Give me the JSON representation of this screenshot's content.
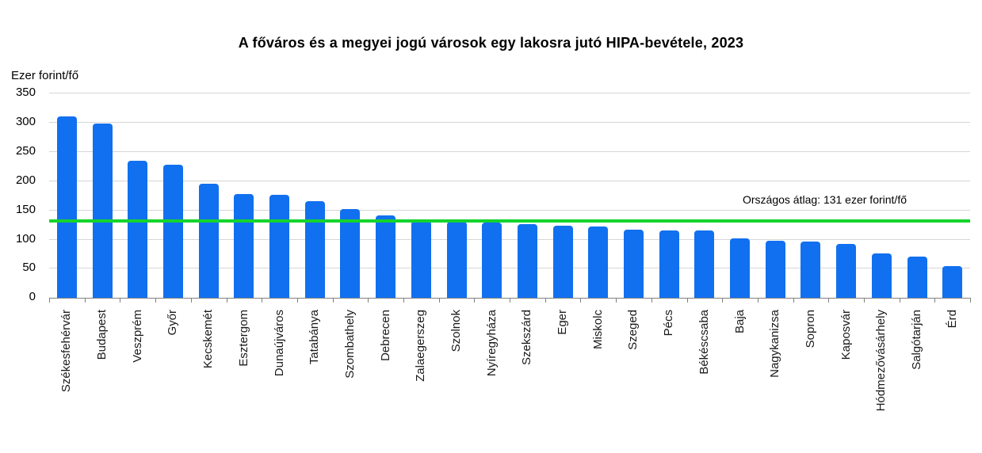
{
  "chart_data": {
    "type": "bar",
    "title": "A főváros és a megyei jogú városok egy lakosra jutó HIPA-bevétele, 2023",
    "y_axis_unit": "Ezer forint/fő",
    "xlabel": "",
    "ylabel": "Ezer forint/fő",
    "ylim": [
      0,
      350
    ],
    "yticks": [
      0,
      50,
      100,
      150,
      200,
      250,
      300,
      350
    ],
    "grid": "horizontal",
    "legend": "none",
    "bar_color": "#1170ef",
    "categories": [
      "Székesfehérvár",
      "Budapest",
      "Veszprém",
      "Győr",
      "Kecskemét",
      "Esztergom",
      "Dunaújváros",
      "Tatabánya",
      "Szombathely",
      "Debrecen",
      "Zalaegerszeg",
      "Szolnok",
      "Nyíregyháza",
      "Szekszárd",
      "Eger",
      "Miskolc",
      "Szeged",
      "Pécs",
      "Békéscsaba",
      "Baja",
      "Nagykanizsa",
      "Sopron",
      "Kaposvár",
      "Hódmezővásárhely",
      "Salgótarján",
      "Érd"
    ],
    "values": [
      310,
      297,
      234,
      227,
      194,
      177,
      176,
      164,
      151,
      140,
      131,
      129,
      128,
      125,
      122,
      121,
      116,
      115,
      114,
      101,
      97,
      96,
      91,
      75,
      70,
      53
    ],
    "average_line": {
      "value": 131,
      "label": "Országos átlag: 131 ezer forint/fő",
      "color": "#15d42c"
    }
  }
}
